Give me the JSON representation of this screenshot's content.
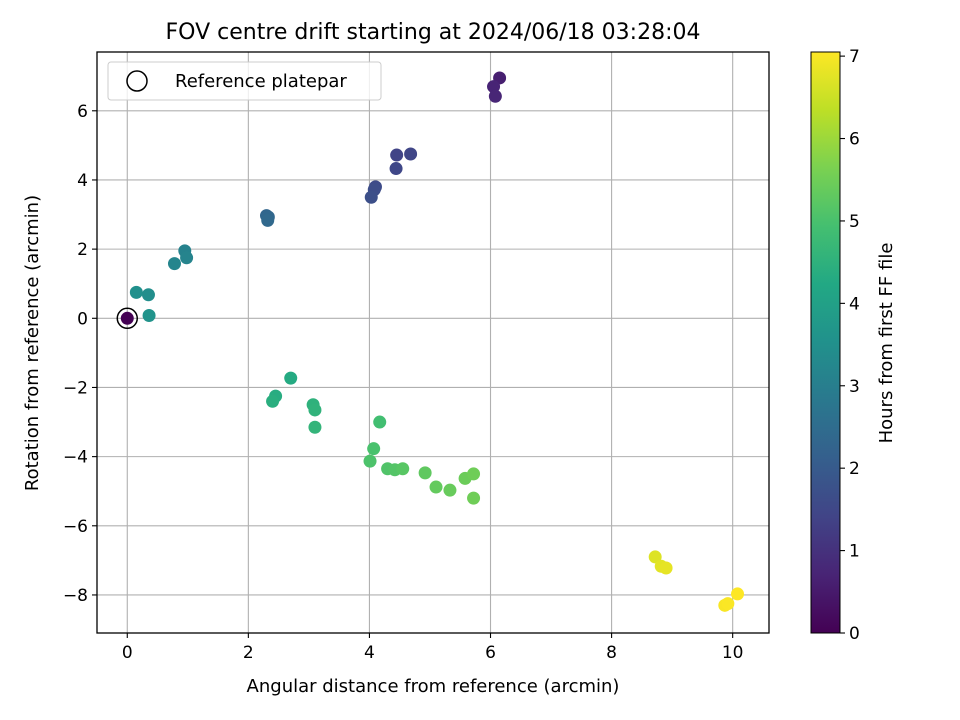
{
  "chart_data": {
    "type": "scatter",
    "title": "FOV centre drift starting at 2024/06/18 03:28:04",
    "xlabel": "Angular distance from reference (arcmin)",
    "ylabel": "Rotation from reference (arcmin)",
    "xlim": [
      -0.5,
      10.6
    ],
    "ylim": [
      -9.1,
      7.7
    ],
    "xticks": [
      0,
      2,
      4,
      6,
      8,
      10
    ],
    "yticks": [
      -8,
      -6,
      -4,
      -2,
      0,
      2,
      4,
      6
    ],
    "grid": true,
    "legend": {
      "placement": "top-left",
      "entries": [
        "Reference platepar"
      ]
    },
    "reference_point": {
      "x": 0,
      "y": 0
    },
    "colorbar": {
      "label": "Hours from first FF file",
      "min": 0,
      "max": 7.05,
      "ticks": [
        0,
        1,
        2,
        3,
        4,
        5,
        6,
        7
      ],
      "colormap": "viridis"
    },
    "points": [
      {
        "x": 0.0,
        "y": 0.0,
        "c": 0.0
      },
      {
        "x": 6.15,
        "y": 6.95,
        "c": 0.6
      },
      {
        "x": 6.05,
        "y": 6.7,
        "c": 0.7
      },
      {
        "x": 6.08,
        "y": 6.42,
        "c": 0.75
      },
      {
        "x": 4.45,
        "y": 4.72,
        "c": 1.4
      },
      {
        "x": 4.68,
        "y": 4.75,
        "c": 1.45
      },
      {
        "x": 4.44,
        "y": 4.33,
        "c": 1.5
      },
      {
        "x": 4.1,
        "y": 3.8,
        "c": 1.6
      },
      {
        "x": 4.08,
        "y": 3.72,
        "c": 1.65
      },
      {
        "x": 4.03,
        "y": 3.5,
        "c": 1.7
      },
      {
        "x": 2.3,
        "y": 2.97,
        "c": 2.3
      },
      {
        "x": 2.33,
        "y": 2.93,
        "c": 2.35
      },
      {
        "x": 2.32,
        "y": 2.83,
        "c": 2.4
      },
      {
        "x": 0.95,
        "y": 1.95,
        "c": 3.1
      },
      {
        "x": 0.98,
        "y": 1.75,
        "c": 3.15
      },
      {
        "x": 0.78,
        "y": 1.58,
        "c": 3.2
      },
      {
        "x": 0.15,
        "y": 0.75,
        "c": 3.5
      },
      {
        "x": 0.35,
        "y": 0.68,
        "c": 3.45
      },
      {
        "x": 0.36,
        "y": 0.08,
        "c": 3.6
      },
      {
        "x": 2.7,
        "y": -1.73,
        "c": 4.3
      },
      {
        "x": 2.45,
        "y": -2.25,
        "c": 4.35
      },
      {
        "x": 2.4,
        "y": -2.4,
        "c": 4.4
      },
      {
        "x": 3.07,
        "y": -2.5,
        "c": 4.5
      },
      {
        "x": 3.1,
        "y": -2.65,
        "c": 4.55
      },
      {
        "x": 3.1,
        "y": -3.15,
        "c": 4.6
      },
      {
        "x": 4.17,
        "y": -3.0,
        "c": 4.9
      },
      {
        "x": 4.07,
        "y": -3.77,
        "c": 5.0
      },
      {
        "x": 4.01,
        "y": -4.13,
        "c": 5.05
      },
      {
        "x": 4.3,
        "y": -4.35,
        "c": 5.1
      },
      {
        "x": 4.42,
        "y": -4.38,
        "c": 5.15
      },
      {
        "x": 4.55,
        "y": -4.35,
        "c": 5.2
      },
      {
        "x": 4.92,
        "y": -4.47,
        "c": 5.3
      },
      {
        "x": 5.1,
        "y": -4.88,
        "c": 5.35
      },
      {
        "x": 5.33,
        "y": -4.97,
        "c": 5.4
      },
      {
        "x": 5.58,
        "y": -4.63,
        "c": 5.45
      },
      {
        "x": 5.72,
        "y": -4.5,
        "c": 5.5
      },
      {
        "x": 5.72,
        "y": -5.2,
        "c": 5.5
      },
      {
        "x": 8.72,
        "y": -6.9,
        "c": 6.7
      },
      {
        "x": 8.82,
        "y": -7.17,
        "c": 6.75
      },
      {
        "x": 8.9,
        "y": -7.22,
        "c": 6.8
      },
      {
        "x": 9.87,
        "y": -8.3,
        "c": 7.0
      },
      {
        "x": 9.92,
        "y": -8.25,
        "c": 7.02
      },
      {
        "x": 10.08,
        "y": -7.97,
        "c": 7.05
      }
    ]
  }
}
